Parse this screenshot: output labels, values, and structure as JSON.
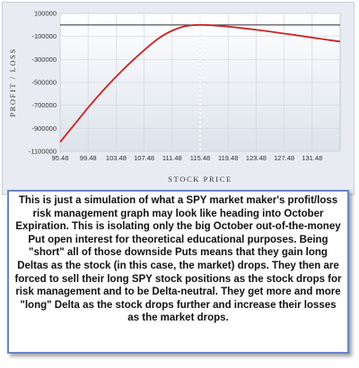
{
  "chart_data": {
    "type": "line",
    "xlabel": "STOCK PRICE",
    "ylabel": "PROFIT / LOSS",
    "xlim": [
      95.48,
      135.48
    ],
    "ylim": [
      -1100000,
      100000
    ],
    "x_ticks": [
      "95.48",
      "99.48",
      "103.48",
      "107.48",
      "111.48",
      "115.48",
      "119.48",
      "123.48",
      "127.48",
      "131.48"
    ],
    "y_ticks": [
      "100000",
      "-100000",
      "-300000",
      "-500000",
      "-700000",
      "-900000",
      "-1100000"
    ],
    "grid": true,
    "marker_line_x": 115.48,
    "series": [
      {
        "color": "#cc2222",
        "x": [
          95.48,
          97.48,
          99.48,
          101.48,
          103.48,
          105.48,
          107.48,
          109.48,
          111.48,
          113.48,
          115.48,
          117.48,
          119.48,
          121.48,
          123.48,
          125.48,
          127.48,
          129.48,
          131.48,
          133.48,
          135.48
        ],
        "y": [
          -1020000,
          -870000,
          -720000,
          -580000,
          -450000,
          -330000,
          -220000,
          -120000,
          -50000,
          -10000,
          0,
          -5000,
          -15000,
          -28000,
          -42000,
          -58000,
          -75000,
          -92000,
          -110000,
          -128000,
          -145000
        ]
      }
    ]
  },
  "caption": "This is just a simulation of what a SPY market maker's profit/loss risk management graph may look like heading into October Expiration.  This is isolating only the big October out-of-the-money Put open interest for theoretical educational purposes.  Being \"short\" all of those downside Puts means that they gain long Deltas as the stock (in this case, the market) drops.  They then are forced to sell their long SPY stock positions as the stock drops for risk management and to be Delta-neutral.  They get more and more \"long\" Delta as the stock drops further and increase their losses as the market drops.",
  "colors": {
    "plot_bg_top": "#ffffff",
    "plot_bg_bottom": "#dde3ec",
    "grid": "#d3d8e0",
    "zero_line": "#2a2a2a",
    "marker_line": "#ffffff",
    "curve": "#cc2222",
    "caption_border": "#6b86c7"
  }
}
